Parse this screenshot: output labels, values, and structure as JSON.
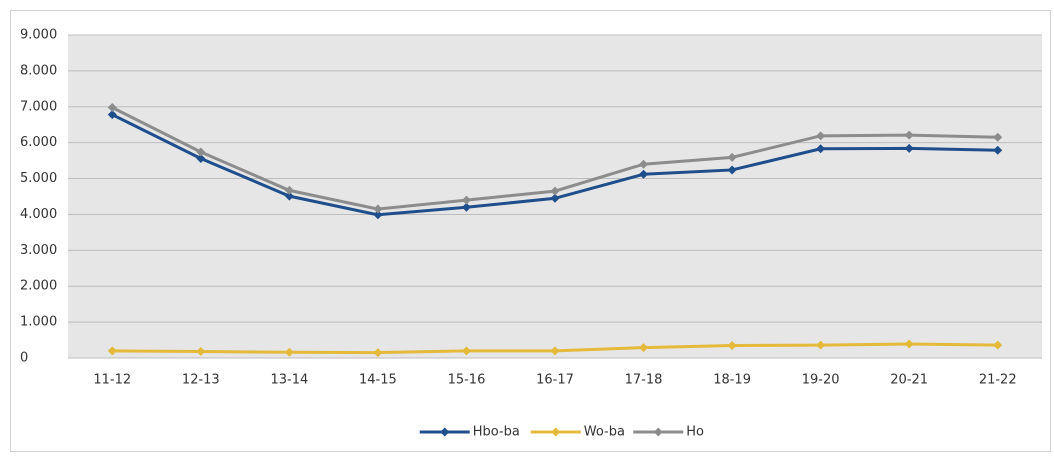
{
  "chart_data": {
    "type": "line",
    "categories": [
      "11-12",
      "12-13",
      "13-14",
      "14-15",
      "15-16",
      "16-17",
      "17-18",
      "18-19",
      "19-20",
      "20-21",
      "21-22"
    ],
    "series": [
      {
        "name": "Hbo-ba",
        "color": "#1f4e8c",
        "values": [
          6780,
          5560,
          4510,
          3990,
          4200,
          4450,
          5120,
          5240,
          5830,
          5840,
          5790
        ]
      },
      {
        "name": "Wo-ba",
        "color": "#e5b93a",
        "values": [
          200,
          180,
          160,
          150,
          200,
          200,
          290,
          350,
          360,
          390,
          360
        ]
      },
      {
        "name": "Ho",
        "color": "#8c8c8c",
        "values": [
          6980,
          5740,
          4670,
          4150,
          4400,
          4650,
          5400,
          5590,
          6190,
          6210,
          6150
        ]
      }
    ],
    "ylim": [
      0,
      9000
    ],
    "yticks": [
      0,
      {
        "value": 1000,
        "label": "1.000"
      },
      {
        "value": 2000,
        "label": "2.000"
      },
      {
        "value": 3000,
        "label": "3.000"
      },
      {
        "value": 4000,
        "label": "4.000"
      },
      {
        "value": 5000,
        "label": "5.000"
      },
      {
        "value": 6000,
        "label": "6.000"
      },
      {
        "value": 7000,
        "label": "7.000"
      },
      {
        "value": 8000,
        "label": "8.000"
      },
      {
        "value": 9000,
        "label": "9.000"
      }
    ],
    "grid": true,
    "legend": "bottom"
  }
}
